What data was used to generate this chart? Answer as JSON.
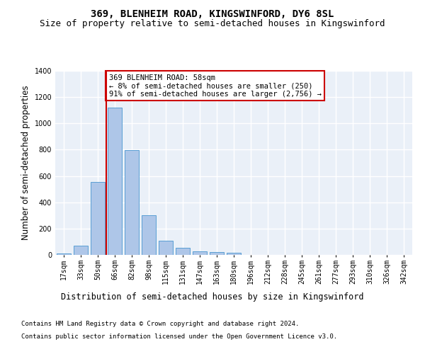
{
  "title_line1": "369, BLENHEIM ROAD, KINGSWINFORD, DY6 8SL",
  "title_line2": "Size of property relative to semi-detached houses in Kingswinford",
  "xlabel": "Distribution of semi-detached houses by size in Kingswinford",
  "ylabel": "Number of semi-detached properties",
  "categories": [
    "17sqm",
    "33sqm",
    "50sqm",
    "66sqm",
    "82sqm",
    "98sqm",
    "115sqm",
    "131sqm",
    "147sqm",
    "163sqm",
    "180sqm",
    "196sqm",
    "212sqm",
    "228sqm",
    "245sqm",
    "261sqm",
    "277sqm",
    "293sqm",
    "310sqm",
    "326sqm",
    "342sqm"
  ],
  "values": [
    12,
    68,
    555,
    1120,
    795,
    302,
    108,
    55,
    28,
    20,
    15,
    0,
    0,
    0,
    0,
    0,
    0,
    0,
    0,
    0,
    0
  ],
  "bar_color": "#aec6e8",
  "bar_edge_color": "#5a9fd4",
  "vline_x": 2,
  "vline_color": "#cc0000",
  "annotation_text": "369 BLENHEIM ROAD: 58sqm\n← 8% of semi-detached houses are smaller (250)\n91% of semi-detached houses are larger (2,756) →",
  "annotation_box_color": "#ffffff",
  "annotation_box_edge_color": "#cc0000",
  "ylim": [
    0,
    1400
  ],
  "yticks": [
    0,
    200,
    400,
    600,
    800,
    1000,
    1200,
    1400
  ],
  "background_color": "#eaf0f8",
  "grid_color": "#ffffff",
  "footer_line1": "Contains HM Land Registry data © Crown copyright and database right 2024.",
  "footer_line2": "Contains public sector information licensed under the Open Government Licence v3.0.",
  "title_fontsize": 10,
  "subtitle_fontsize": 9,
  "axis_label_fontsize": 8.5,
  "tick_fontsize": 7,
  "annotation_fontsize": 7.5,
  "footer_fontsize": 6.5
}
